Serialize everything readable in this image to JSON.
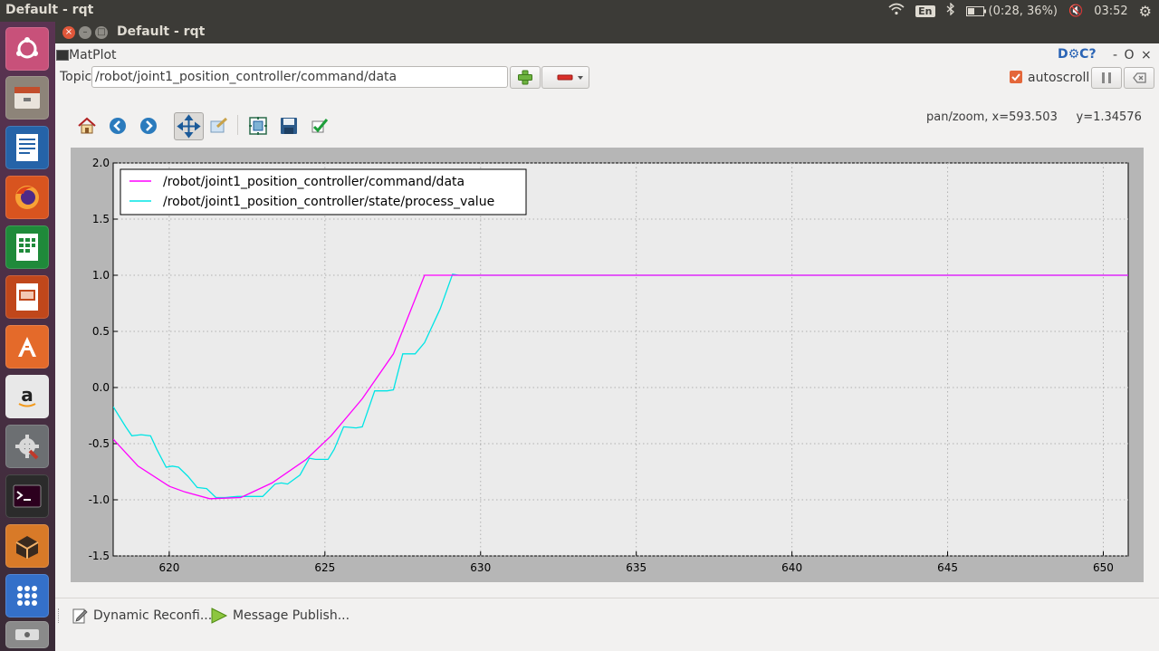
{
  "system": {
    "app_title": "Default - rqt",
    "lang": "En",
    "battery": "(0:28, 36%)",
    "clock": "03:52"
  },
  "window": {
    "title": "Default - rqt"
  },
  "plugin": {
    "name": "MatPlot",
    "title_icons": "D⚙C?",
    "title_controls": "- O ×",
    "topic_label": "Topic",
    "topic_value": "/robot/joint1_position_controller/command/data",
    "autoscroll_label": "autoscroll",
    "autoscroll_checked": true,
    "status_text": "pan/zoom, x=593.503     y=1.34576"
  },
  "toolbar_icons": [
    "home-icon",
    "back-icon",
    "forward-icon",
    "pan-icon",
    "zoom-icon",
    "subplots-icon",
    "save-icon",
    "check-icon"
  ],
  "bottom_tabs": [
    "Dynamic Reconfi...",
    "Message Publish..."
  ],
  "colors": {
    "accent_command": "#ff00ff",
    "accent_state": "#00e5e5",
    "plot_bg": "#ebebeb",
    "frame": "#b6b6b6"
  },
  "chart_data": {
    "type": "line",
    "title": "",
    "xlabel": "",
    "ylabel": "",
    "xlim": [
      618.2,
      650.8
    ],
    "ylim": [
      -1.5,
      2.0
    ],
    "x_ticks": [
      "620",
      "625",
      "630",
      "635",
      "640",
      "645",
      "650"
    ],
    "y_ticks": [
      "-1.5",
      "-1.0",
      "-0.5",
      "0.0",
      "0.5",
      "1.0",
      "1.5",
      "2.0"
    ],
    "grid": true,
    "legend_position": "top-left",
    "series": [
      {
        "name": "/robot/joint1_position_controller/command/data",
        "color": "#ff00ff",
        "x": [
          618.2,
          619.0,
          620.0,
          620.5,
          621.3,
          622.3,
          623.3,
          624.4,
          625.2,
          626.2,
          627.2,
          628.2,
          629.0,
          630.0,
          635.0,
          640.0,
          645.0,
          650.8
        ],
        "y": [
          -0.46,
          -0.7,
          -0.88,
          -0.93,
          -0.99,
          -0.98,
          -0.85,
          -0.64,
          -0.43,
          -0.1,
          0.3,
          1.0,
          1.0,
          1.0,
          1.0,
          1.0,
          1.0,
          1.0
        ]
      },
      {
        "name": "/robot/joint1_position_controller/state/process_value",
        "color": "#00e5e5",
        "x": [
          618.2,
          618.6,
          618.8,
          619.1,
          619.4,
          619.6,
          619.9,
          620.1,
          620.3,
          620.6,
          620.9,
          621.2,
          621.5,
          621.8,
          622.2,
          622.6,
          623.0,
          623.4,
          623.6,
          623.8,
          624.2,
          624.5,
          624.7,
          625.1,
          625.3,
          625.6,
          626.0,
          626.2,
          626.6,
          627.0,
          627.2,
          627.5,
          627.9,
          628.2,
          628.7,
          629.1,
          629.3,
          629.6,
          630.0,
          635.0,
          640.0,
          645.0,
          650.0,
          650.8
        ],
        "y": [
          -0.17,
          -0.35,
          -0.43,
          -0.42,
          -0.43,
          -0.55,
          -0.71,
          -0.7,
          -0.71,
          -0.79,
          -0.89,
          -0.9,
          -0.98,
          -0.98,
          -0.97,
          -0.97,
          -0.97,
          -0.86,
          -0.85,
          -0.86,
          -0.78,
          -0.63,
          -0.64,
          -0.64,
          -0.55,
          -0.35,
          -0.36,
          -0.35,
          -0.03,
          -0.03,
          -0.02,
          0.3,
          0.3,
          0.4,
          0.7,
          1.01,
          1.0,
          1.0,
          1.0,
          1.0,
          1.0,
          1.0,
          1.0,
          1.0
        ]
      }
    ]
  }
}
